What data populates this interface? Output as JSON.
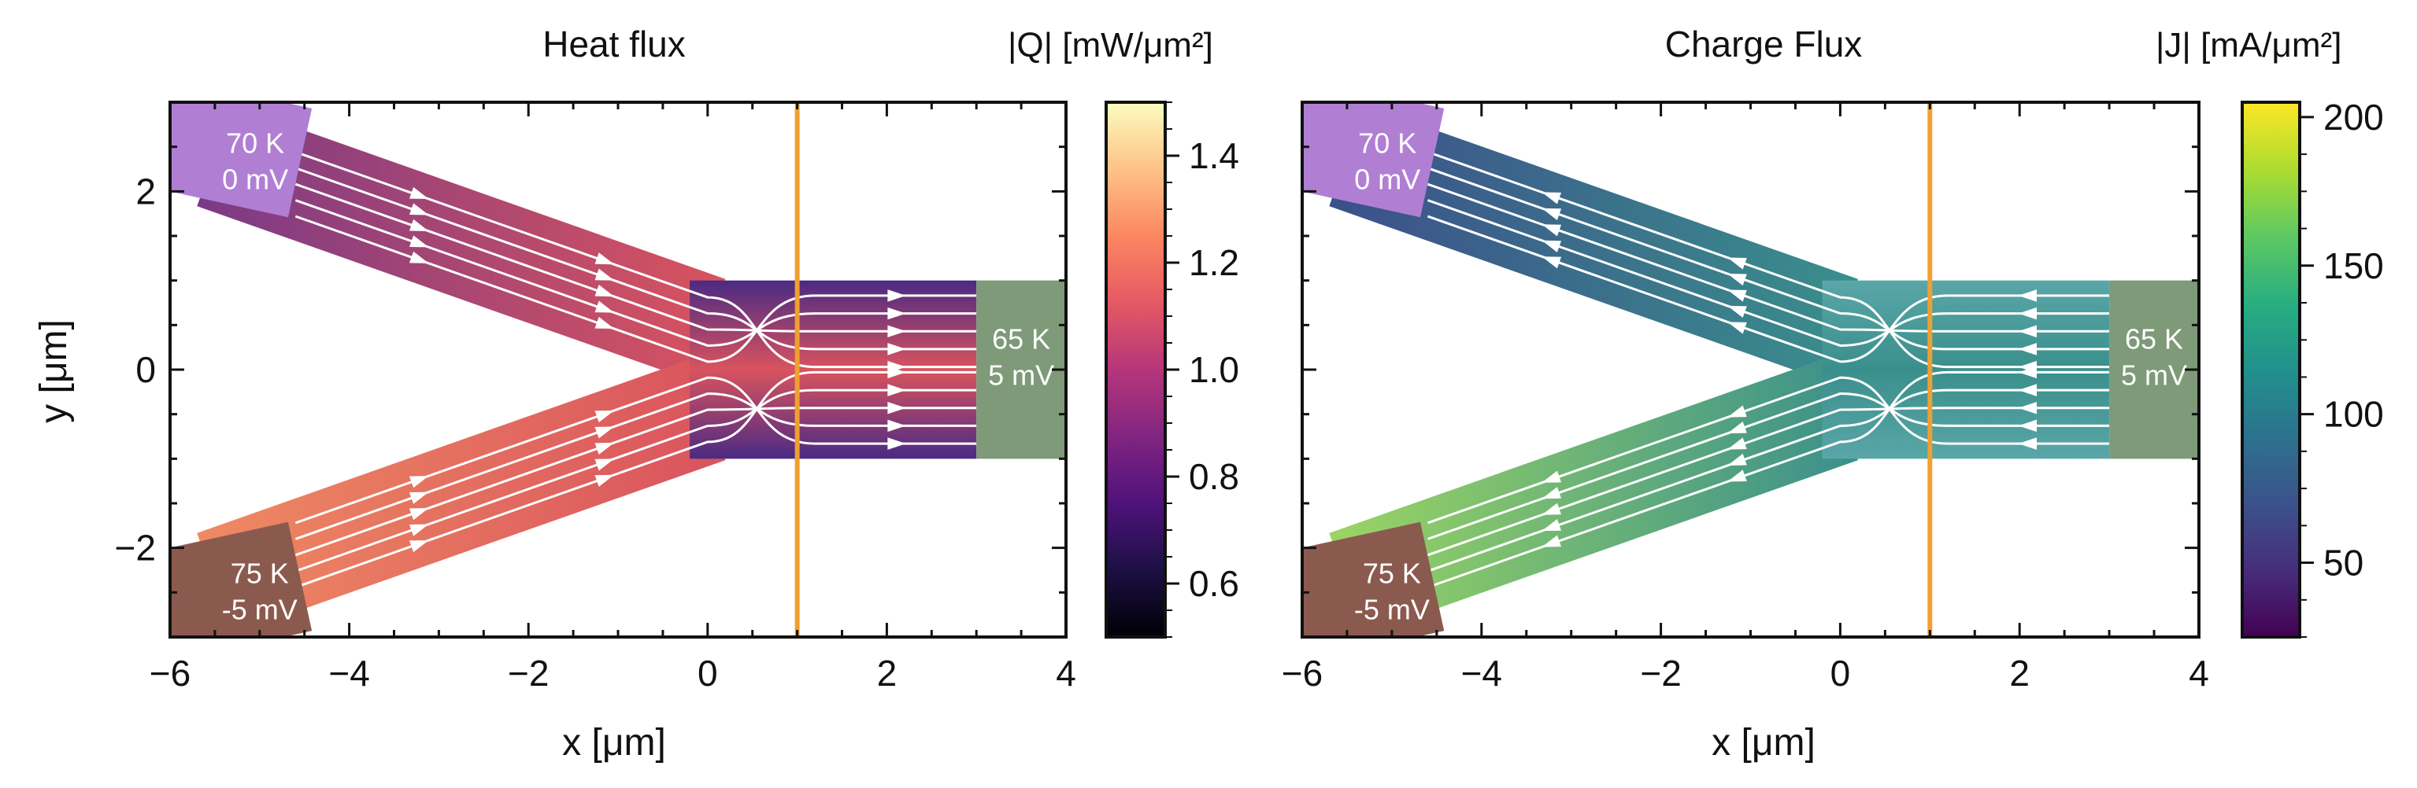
{
  "figure": {
    "panels": [
      {
        "id": "heat",
        "title": "Heat flux",
        "colorbar_label": "|Q| [mW/μm²]",
        "colorbar_range": [
          0.5,
          1.5
        ],
        "colorbar_ticks": [
          0.6,
          0.8,
          1.0,
          1.2,
          1.4
        ],
        "colorbar_tick_labels": [
          "0.6",
          "0.8",
          "1.0",
          "1.2",
          "1.4"
        ],
        "colormap": "magma",
        "flow_direction": "inward",
        "colors": {
          "top_arm": "#7a3a86",
          "bottom_arm": "#ef8a62",
          "channel": "#d9535e",
          "channel_edge": "#4b2a83"
        }
      },
      {
        "id": "charge",
        "title": "Charge Flux",
        "colorbar_label": "|J| [mA/μm²]",
        "colorbar_range": [
          25,
          205
        ],
        "colorbar_ticks": [
          50,
          100,
          150,
          200
        ],
        "colorbar_tick_labels": [
          "50",
          "100",
          "150",
          "200"
        ],
        "colormap": "viridis",
        "flow_direction": "reverse",
        "colors": {
          "top_arm": "#3c4f8a",
          "bottom_arm": "#9bd563",
          "channel": "#3a8f8c",
          "channel_edge": "#5aa6a8"
        }
      }
    ],
    "contacts": [
      {
        "id": "left-top",
        "temperature": "70 K",
        "voltage": "0 mV",
        "color": "#b07fd4"
      },
      {
        "id": "left-bottom",
        "temperature": "75 K",
        "voltage": "-5 mV",
        "color": "#8b5a4f"
      },
      {
        "id": "right",
        "temperature": "65 K",
        "voltage": "5 mV",
        "color": "#7e9a78"
      }
    ],
    "cut_line_x": 1,
    "cut_line_color": "#f0a030"
  },
  "chart_data": [
    {
      "type": "heatmap",
      "title": "Heat flux",
      "xlabel": "x [μm]",
      "ylabel": "y [μm]",
      "xlim": [
        -6,
        4
      ],
      "ylim": [
        -3,
        3
      ],
      "xticks": [
        -6,
        -4,
        -2,
        0,
        2,
        4
      ],
      "xtick_labels": [
        "−6",
        "−4",
        "−2",
        "0",
        "2",
        "4"
      ],
      "yticks": [
        -2,
        0,
        2
      ],
      "ytick_labels": [
        "−2",
        "0",
        "2"
      ],
      "geometry": {
        "top_arm": {
          "from": [
            -5.5,
            2.4
          ],
          "to": [
            0,
            0.45
          ],
          "width": 1.2
        },
        "bottom_arm": {
          "from": [
            -5.5,
            -2.4
          ],
          "to": [
            0,
            -0.45
          ],
          "width": 1.2
        },
        "channel": {
          "x": [
            0.1,
            3
          ],
          "y": [
            -1,
            1
          ]
        }
      },
      "colorbar": {
        "label": "|Q| [mW/μm²]",
        "range": [
          0.5,
          1.5
        ],
        "colormap": "magma"
      }
    },
    {
      "type": "heatmap",
      "title": "Charge Flux",
      "xlabel": "x [μm]",
      "ylabel": "",
      "xlim": [
        -6,
        4
      ],
      "ylim": [
        -3,
        3
      ],
      "xticks": [
        -6,
        -4,
        -2,
        0,
        2,
        4
      ],
      "xtick_labels": [
        "−6",
        "−4",
        "−2",
        "0",
        "2",
        "4"
      ],
      "yticks": [
        -2,
        0,
        2
      ],
      "ytick_labels": [],
      "geometry": {
        "top_arm": {
          "from": [
            -5.5,
            2.4
          ],
          "to": [
            0,
            0.45
          ],
          "width": 1.2
        },
        "bottom_arm": {
          "from": [
            -5.5,
            -2.4
          ],
          "to": [
            0,
            -0.45
          ],
          "width": 1.2
        },
        "channel": {
          "x": [
            0.1,
            3
          ],
          "y": [
            -1,
            1
          ]
        }
      },
      "colorbar": {
        "label": "|J| [mA/μm²]",
        "range": [
          25,
          205
        ],
        "colormap": "viridis"
      }
    }
  ]
}
